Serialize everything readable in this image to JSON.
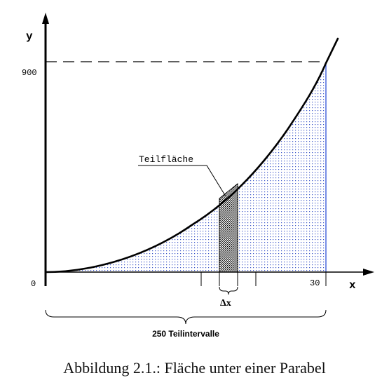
{
  "figure": {
    "y_axis_label": "y",
    "x_axis_label": "x",
    "y_tick_900": "900",
    "x_tick_0": "0",
    "y_tick_origin": "0",
    "x_tick_30": "30",
    "partial_area_label": "Teilfläche",
    "delta_x_label": "Δx",
    "intervals_label": "250 Teilintervalle"
  },
  "caption": "Abbildung 2.1.:  Fläche unter einer Parabel",
  "colors": {
    "line": "#000000",
    "dots": "#3a55c8",
    "boundary": "#2f52d8"
  }
}
